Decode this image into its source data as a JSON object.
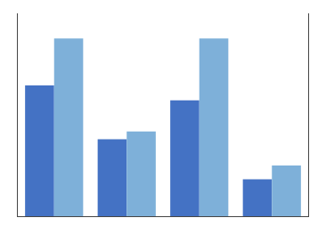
{
  "chart_data": {
    "type": "bar",
    "categories": [
      null,
      null,
      null,
      null
    ],
    "series": [
      {
        "color": "#4472C4",
        "values": [
          283.7,
          166.9,
          251.3,
          80.0
        ]
      },
      {
        "color": "#7EB0D9",
        "values": [
          385.4,
          183.7,
          385.4,
          110.0
        ]
      }
    ],
    "ylim": [
      0,
      440
    ],
    "tick_labels": false,
    "grid": false
  }
}
